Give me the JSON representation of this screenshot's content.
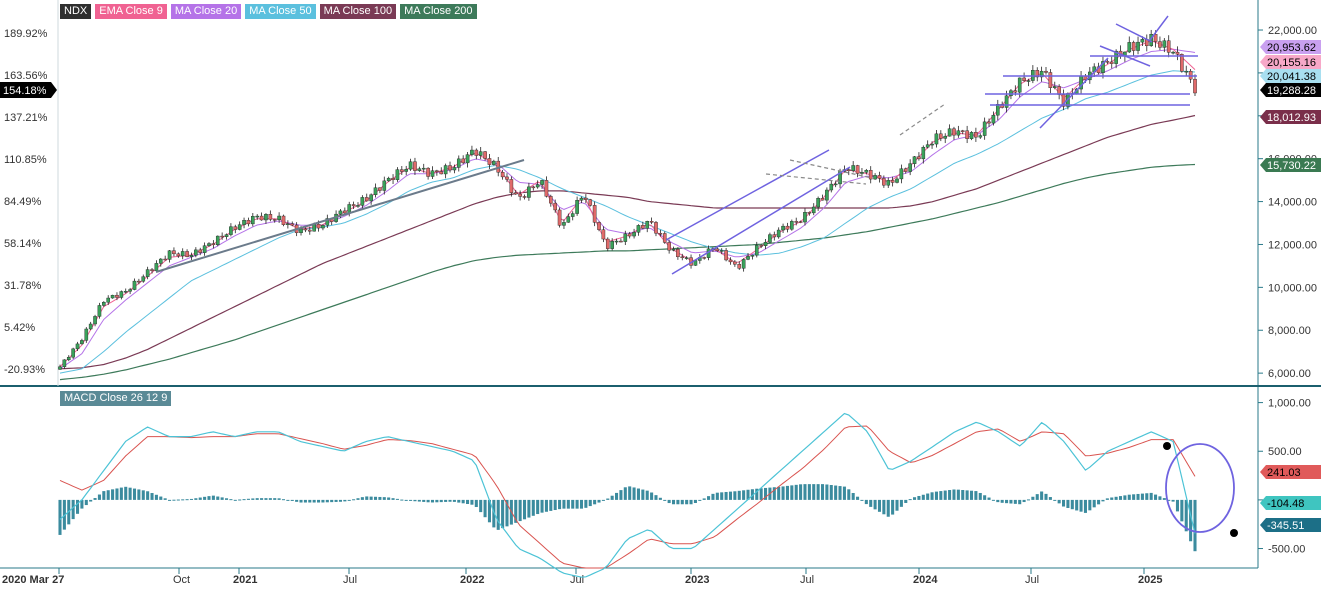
{
  "chart_data": {
    "type": "line",
    "symbol": "NDX",
    "legend": [
      {
        "label": "NDX",
        "color": "#2f2f2f"
      },
      {
        "label": "EMA Close 9",
        "color": "#f06292"
      },
      {
        "label": "MA Close 20",
        "color": "#b573e8"
      },
      {
        "label": "MA Close 50",
        "color": "#5bc0de"
      },
      {
        "label": "MA Close 100",
        "color": "#7a3a55"
      },
      {
        "label": "MA Close 200",
        "color": "#3d7a5a"
      }
    ],
    "price_axis": {
      "range": [
        5400,
        23400
      ],
      "ticks": [
        {
          "value": 6000,
          "label": "6,000.00"
        },
        {
          "value": 8000,
          "label": "8,000.00"
        },
        {
          "value": 10000,
          "label": "10,000.00"
        },
        {
          "value": 12000,
          "label": "12,000.00"
        },
        {
          "value": 14000,
          "label": "14,000.00"
        },
        {
          "value": 16000,
          "label": "16,000.00"
        },
        {
          "value": 18000,
          "label": "18,000.00"
        },
        {
          "value": 20000,
          "label": "20,000.00"
        },
        {
          "value": 22000,
          "label": "22,000.00"
        }
      ]
    },
    "percent_axis": {
      "ticks": [
        "189.92%",
        "163.56%",
        "137.21%",
        "110.85%",
        "84.49%",
        "58.14%",
        "31.78%",
        "5.42%",
        "-20.93%"
      ],
      "current_label": "154.18%"
    },
    "price_markers": [
      {
        "label": "20,953.62",
        "color": "#c9a0f0",
        "text_color": "#000000"
      },
      {
        "label": "20,155.16",
        "color": "#f7a8c8",
        "text_color": "#000000"
      },
      {
        "label": "20,041.38",
        "color": "#a8dff0",
        "text_color": "#000000"
      },
      {
        "label": "19,288.28",
        "color": "#000000",
        "text_color": "#ffffff"
      },
      {
        "label": "18,012.93",
        "color": "#7a2e4a",
        "text_color": "#ffffff"
      },
      {
        "label": "15,730.22",
        "color": "#3a7a52",
        "text_color": "#ffffff"
      }
    ],
    "time_axis": {
      "labels": [
        "2020 Mar 27",
        "Oct",
        "2021",
        "Jul",
        "2022",
        "Jul",
        "2023",
        "Jul",
        "2024",
        "Jul",
        "2025"
      ]
    },
    "price_anchors": [
      6300,
      7600,
      9400,
      9800,
      10700,
      11600,
      11500,
      12100,
      12800,
      13300,
      13200,
      12600,
      12900,
      13600,
      14100,
      15000,
      15700,
      15300,
      15600,
      16400,
      15600,
      14100,
      15000,
      12800,
      14400,
      11900,
      12400,
      13100,
      11700,
      11100,
      11900,
      10900,
      11900,
      12700,
      13200,
      14300,
      15600,
      15300,
      14800,
      15800,
      16900,
      17300,
      17000,
      18400,
      19600,
      20100,
      18600,
      19900,
      20500,
      21200,
      21600,
      21000,
      19280
    ],
    "ema9_anchors": [
      6300,
      7300,
      9100,
      9700,
      10500,
      11400,
      11500,
      12000,
      12700,
      13200,
      13200,
      12700,
      12900,
      13500,
      14000,
      14900,
      15600,
      15300,
      15600,
      16300,
      15700,
      14300,
      15000,
      13000,
      14300,
      12100,
      12400,
      13000,
      11800,
      11200,
      11800,
      11100,
      11800,
      12600,
      13100,
      14200,
      15500,
      15300,
      14900,
      15700,
      16800,
      17200,
      17100,
      18300,
      19500,
      20000,
      18800,
      19800,
      20400,
      21100,
      21500,
      21100,
      20155
    ],
    "ma20_anchors": [
      6200,
      6900,
      8500,
      9400,
      10200,
      11000,
      11400,
      11800,
      12400,
      12900,
      13100,
      12900,
      12900,
      13300,
      13800,
      14500,
      15300,
      15300,
      15500,
      16000,
      15800,
      14900,
      14800,
      13600,
      14000,
      12700,
      12500,
      12800,
      12100,
      11600,
      11700,
      11400,
      11600,
      12200,
      12800,
      13700,
      14900,
      15200,
      15100,
      15400,
      16200,
      16900,
      17100,
      17800,
      18900,
      19600,
      19300,
      19700,
      20100,
      20600,
      21000,
      21100,
      20953
    ],
    "ma50_anchors": [
      6000,
      6200,
      7000,
      7900,
      8700,
      9500,
      10300,
      10800,
      11300,
      11800,
      12300,
      12700,
      12800,
      13000,
      13400,
      13900,
      14500,
      14900,
      15100,
      15500,
      15700,
      15500,
      15100,
      14600,
      14200,
      13800,
      13300,
      12900,
      12500,
      12100,
      11800,
      11600,
      11500,
      11600,
      11900,
      12300,
      13000,
      13700,
      14200,
      14600,
      15200,
      15800,
      16200,
      16700,
      17300,
      17900,
      18300,
      18800,
      19100,
      19500,
      19900,
      20100,
      20041
    ],
    "ma100_anchors": [
      6200,
      6250,
      6400,
      6700,
      7100,
      7600,
      8100,
      8600,
      9100,
      9600,
      10100,
      10600,
      11100,
      11500,
      11900,
      12300,
      12700,
      13100,
      13500,
      13900,
      14200,
      14400,
      14500,
      14500,
      14400,
      14300,
      14200,
      14000,
      13900,
      13800,
      13700,
      13700,
      13700,
      13700,
      13700,
      13700,
      13700,
      13700,
      13700,
      13800,
      14000,
      14300,
      14600,
      15000,
      15400,
      15800,
      16200,
      16600,
      17000,
      17300,
      17600,
      17800,
      18012
    ],
    "ma200_anchors": [
      5700,
      5800,
      5950,
      6150,
      6400,
      6650,
      6950,
      7250,
      7550,
      7900,
      8250,
      8600,
      8950,
      9300,
      9650,
      10000,
      10350,
      10700,
      11000,
      11250,
      11400,
      11500,
      11550,
      11600,
      11650,
      11700,
      11700,
      11750,
      11800,
      11850,
      11900,
      11950,
      12000,
      12100,
      12200,
      12300,
      12450,
      12600,
      12800,
      13000,
      13200,
      13450,
      13700,
      13950,
      14250,
      14550,
      14850,
      15100,
      15300,
      15450,
      15600,
      15680,
      15730
    ],
    "macd": {
      "label": "MACD Close 26 12 9",
      "axis_range": [
        -700,
        1150
      ],
      "ticks": [
        {
          "value": 1000,
          "label": "1,000.00"
        },
        {
          "value": 500,
          "label": "500.00"
        },
        {
          "value": 0,
          "label": "0"
        },
        {
          "value": -500,
          "label": "-500.00"
        }
      ],
      "macd_anchors": [
        -200,
        0,
        300,
        600,
        750,
        650,
        650,
        700,
        650,
        700,
        700,
        600,
        550,
        500,
        600,
        650,
        600,
        550,
        500,
        400,
        -200,
        -500,
        -600,
        -750,
        -800,
        -700,
        -400,
        -300,
        -500,
        -500,
        -300,
        -100,
        100,
        300,
        500,
        700,
        900,
        700,
        300,
        400,
        550,
        700,
        800,
        700,
        550,
        800,
        600,
        300,
        500,
        600,
        700,
        600,
        -345
      ],
      "signal_anchors": [
        200,
        100,
        200,
        450,
        650,
        650,
        640,
        650,
        650,
        680,
        680,
        630,
        580,
        520,
        560,
        620,
        610,
        580,
        520,
        460,
        150,
        -250,
        -450,
        -650,
        -700,
        -700,
        -560,
        -400,
        -450,
        -450,
        -380,
        -200,
        -30,
        150,
        320,
        520,
        750,
        760,
        500,
        380,
        460,
        580,
        700,
        730,
        600,
        700,
        680,
        450,
        480,
        540,
        620,
        620,
        241
      ],
      "histogram_scale": 0.9,
      "markers": [
        {
          "label": "241.03",
          "color": "#e05a5a",
          "text_color": "#000000"
        },
        {
          "label": "-104.48",
          "color": "#3fc5c0",
          "text_color": "#000000"
        },
        {
          "label": "-345.51",
          "color": "#1c6f87",
          "text_color": "#ffffff"
        }
      ]
    },
    "colors": {
      "up": "#3aa15a",
      "down": "#e06a6a",
      "trend_blue": "#6f63e0",
      "trend_gray": "#6b7b8b",
      "histogram": "#3b8b9e",
      "macd_line": "#4cc3d6",
      "signal_line": "#d9534f",
      "axis": "#2a7a8a"
    }
  }
}
